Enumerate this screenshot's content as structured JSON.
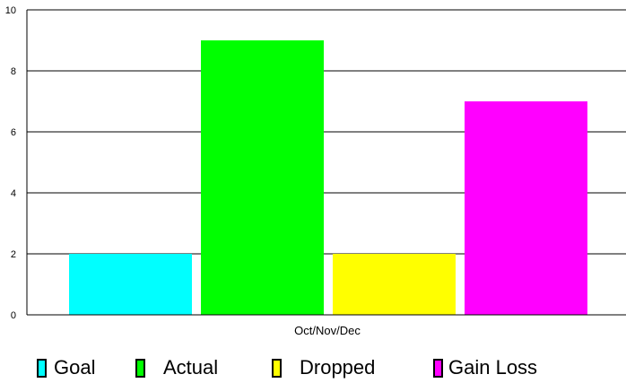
{
  "chart_data": {
    "type": "bar",
    "categories": [
      "Oct/Nov/Dec"
    ],
    "series": [
      {
        "name": "Goal",
        "values": [
          2
        ],
        "color": "#00ffff"
      },
      {
        "name": "Actual",
        "values": [
          9
        ],
        "color": "#00ff00"
      },
      {
        "name": "Dropped",
        "values": [
          2
        ],
        "color": "#ffff00"
      },
      {
        "name": "Gain Loss",
        "values": [
          7
        ],
        "color": "#ff00ff"
      }
    ],
    "title": "",
    "xlabel": "",
    "ylabel": "",
    "ylim": [
      0,
      10
    ],
    "yticks": [
      0,
      2,
      4,
      6,
      8,
      10
    ],
    "grid": true,
    "legend_position": "bottom"
  }
}
